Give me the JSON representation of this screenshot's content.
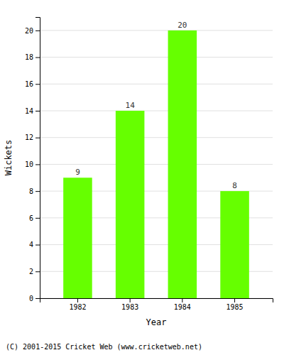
{
  "chart_data": {
    "type": "bar",
    "categories": [
      "1982",
      "1983",
      "1984",
      "1985"
    ],
    "values": [
      9,
      14,
      20,
      8
    ],
    "color": "#66FF00",
    "xlabel": "Year",
    "ylabel": "Wickets",
    "ylim": [
      0,
      21
    ],
    "yticks": [
      0,
      2,
      4,
      6,
      8,
      10,
      12,
      14,
      16,
      18,
      20
    ],
    "grid": true,
    "data_labels": true,
    "annotations": [
      "(C) 2001-2015 Cricket Web (www.cricketweb.net)"
    ]
  }
}
